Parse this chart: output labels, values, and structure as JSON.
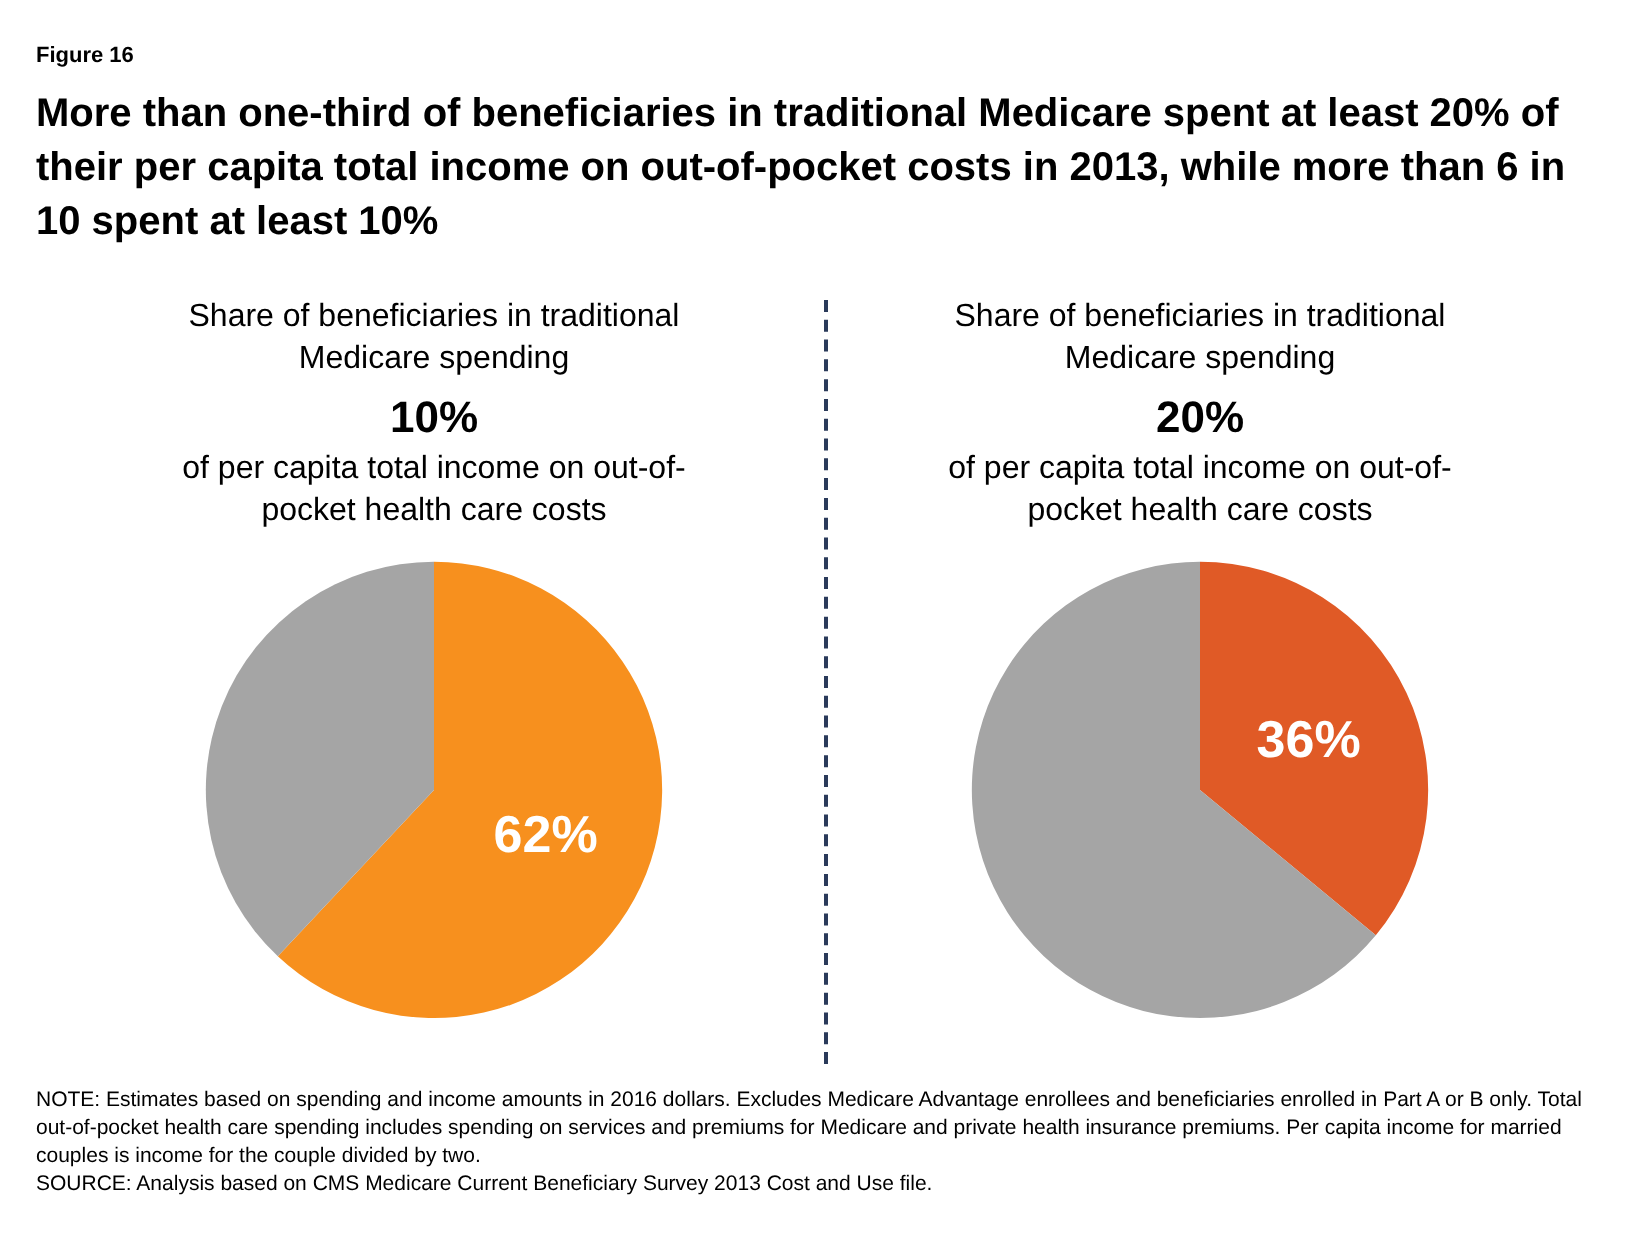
{
  "chart_data": [
    {
      "type": "other",
      "title": "More than one-third of beneficiaries in traditional Medicare spent at least 20% of their per capita total income on out-of-pocket costs in 2013, while more than 6 in 10 spent at least 10%",
      "annotations": [
        "Figure 16",
        "NOTE: Estimates based on spending and income amounts in 2016 dollars. Excludes Medicare Advantage enrollees and beneficiaries enrolled in Part A or B only. Total out-of-pocket health care spending includes spending on services and premiums for Medicare and private health insurance premiums. Per capita income for married couples is income for the couple divided by two.",
        "SOURCE: Analysis based on CMS Medicare Current Beneficiary Survey 2013 Cost and Use file."
      ]
    },
    {
      "type": "pie",
      "subtitle": "Share of beneficiaries in traditional Medicare spending",
      "title": "10%",
      "annotations": [
        "of per capita total income on out-of-pocket health care costs"
      ],
      "categories": [
        null,
        null
      ],
      "values": [
        62,
        38
      ],
      "colors": [
        "#f7901e",
        "#a5a5a5"
      ],
      "value_labels": [
        "62%",
        null
      ]
    },
    {
      "type": "pie",
      "subtitle": "Share of beneficiaries in traditional Medicare spending",
      "title": "20%",
      "annotations": [
        "of per capita total income on out-of-pocket health care costs"
      ],
      "categories": [
        null,
        null
      ],
      "values": [
        36,
        64
      ],
      "colors": [
        "#e05a26",
        "#a5a5a5"
      ],
      "value_labels": [
        "36%",
        null
      ]
    }
  ]
}
